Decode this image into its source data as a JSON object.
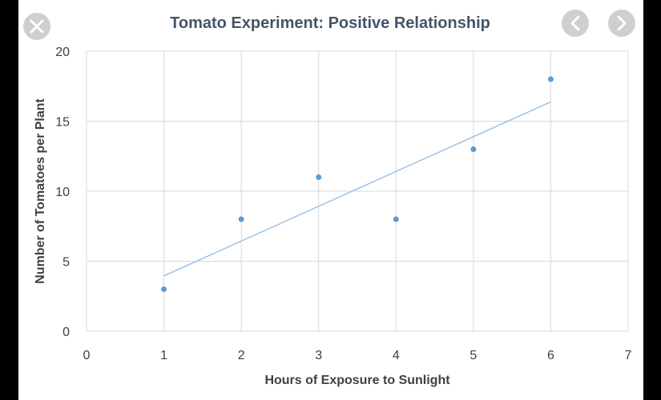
{
  "viewer": {
    "close_icon": "close-icon",
    "prev_icon": "chevron-left-icon",
    "next_icon": "chevron-right-icon"
  },
  "colors": {
    "background": "#000000",
    "plot_area": "#ffffff",
    "grid": "#d9d9d9",
    "points": "#5b9bd5",
    "trendline": "#9dc3e6",
    "text": "#404040",
    "title": "#44546a",
    "button": "#cfcfcf"
  },
  "chart_data": {
    "type": "scatter",
    "title": "Tomato Experiment: Positive Relationship",
    "xlabel": "Hours of Exposure to Sunlight",
    "ylabel": "Number of Tomatoes per Plant",
    "xlim": [
      0,
      7
    ],
    "ylim": [
      0,
      20
    ],
    "xticks": [
      "0",
      "1",
      "2",
      "3",
      "4",
      "5",
      "6",
      "7"
    ],
    "yticks": [
      "0",
      "5",
      "10",
      "15",
      "20"
    ],
    "grid": true,
    "legend": "none",
    "series": [
      {
        "x": [
          1,
          2,
          3,
          4,
          5,
          6
        ],
        "y": [
          3,
          8,
          11,
          8,
          13,
          18
        ]
      }
    ],
    "trendline": {
      "type": "linear",
      "x_start": 1,
      "x_end": 6
    }
  }
}
